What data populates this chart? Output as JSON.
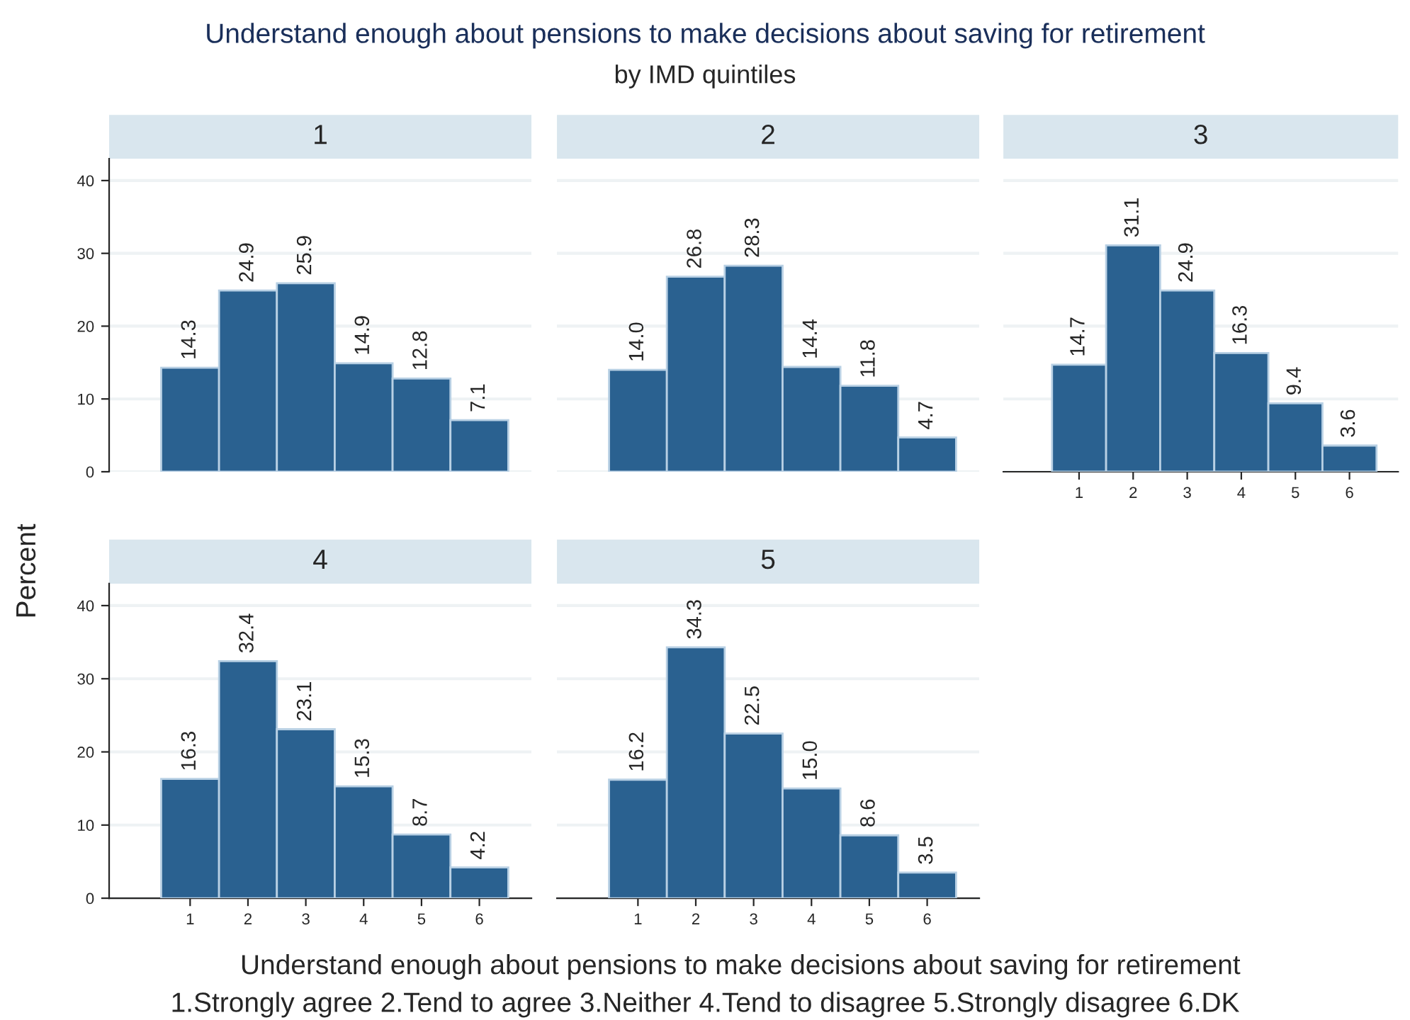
{
  "chart_data": [
    {
      "type": "bar",
      "title": "1",
      "x": [
        1,
        2,
        3,
        4,
        5,
        6
      ],
      "values": [
        14.3,
        24.9,
        25.9,
        14.9,
        12.8,
        7.1
      ],
      "value_labels": [
        "14.3",
        "24.9",
        "25.9",
        "14.9",
        "12.8",
        "7.1"
      ],
      "color": "#2a6190",
      "xlim": [
        -0.4,
        6.9
      ],
      "xticks": [
        1,
        2,
        3,
        4,
        5,
        6
      ],
      "ylim": [
        0,
        43
      ],
      "yticks": [
        0,
        10,
        20,
        30,
        40
      ],
      "grid": "y",
      "tick_labels": "y"
    },
    {
      "type": "bar",
      "title": "2",
      "x": [
        1,
        2,
        3,
        4,
        5,
        6
      ],
      "values": [
        14.0,
        26.8,
        28.3,
        14.4,
        11.8,
        4.7
      ],
      "value_labels": [
        "14.0",
        "26.8",
        "28.3",
        "14.4",
        "11.8",
        "4.7"
      ],
      "color": "#2a6190",
      "xlim": [
        -0.4,
        6.9
      ],
      "xticks": [
        1,
        2,
        3,
        4,
        5,
        6
      ],
      "yticks": [
        0,
        10,
        20,
        30,
        40
      ],
      "grid": "y",
      "tick_labels": false
    },
    {
      "type": "bar",
      "title": "3",
      "x": [
        1,
        2,
        3,
        4,
        5,
        6
      ],
      "values": [
        14.7,
        31.1,
        24.9,
        16.3,
        9.4,
        3.6
      ],
      "value_labels": [
        "14.7",
        "31.1",
        "24.9",
        "16.3",
        "9.4",
        "3.6"
      ],
      "color": "#2a6190",
      "xlim": [
        -0.4,
        6.9
      ],
      "xticks": [
        1,
        2,
        3,
        4,
        5,
        6
      ],
      "yticks": [
        0,
        10,
        20,
        30,
        40
      ],
      "grid": "y",
      "tick_labels": "x"
    },
    {
      "type": "bar",
      "title": "4",
      "x": [
        1,
        2,
        3,
        4,
        5,
        6
      ],
      "values": [
        16.3,
        32.4,
        23.1,
        15.3,
        8.7,
        4.2
      ],
      "value_labels": [
        "16.3",
        "32.4",
        "23.1",
        "15.3",
        "8.7",
        "4.2"
      ],
      "color": "#2a6190",
      "xlim": [
        -0.4,
        6.9
      ],
      "xticks": [
        1,
        2,
        3,
        4,
        5,
        6
      ],
      "ylim": [
        0,
        43
      ],
      "yticks": [
        0,
        10,
        20,
        30,
        40
      ],
      "grid": "y"
    },
    {
      "type": "bar",
      "title": "5",
      "x": [
        1,
        2,
        3,
        4,
        5,
        6
      ],
      "values": [
        16.2,
        34.3,
        22.5,
        15.0,
        8.6,
        3.5
      ],
      "value_labels": [
        "16.2",
        "34.3",
        "22.5",
        "15.0",
        "8.6",
        "3.5"
      ],
      "color": "#2a6190",
      "xlim": [
        -0.4,
        6.9
      ],
      "xticks": [
        1,
        2,
        3,
        4,
        5,
        6
      ],
      "yticks": [
        0,
        10,
        20,
        30,
        40
      ],
      "grid": "y",
      "tick_labels": "x"
    },
    {
      "type": "other",
      "title": "Understand enough about pensions to make decisions about saving for retirement",
      "subtitle": "by IMD quintiles",
      "xlabel": "Understand enough about pensions to make decisions about saving for retirement",
      "ylabel": "Percent",
      "annotations": [
        "1.Strongly agree 2.Tend to agree 3.Neither 4.Tend to disagree 5.Strongly disagree 6.DK"
      ]
    }
  ]
}
